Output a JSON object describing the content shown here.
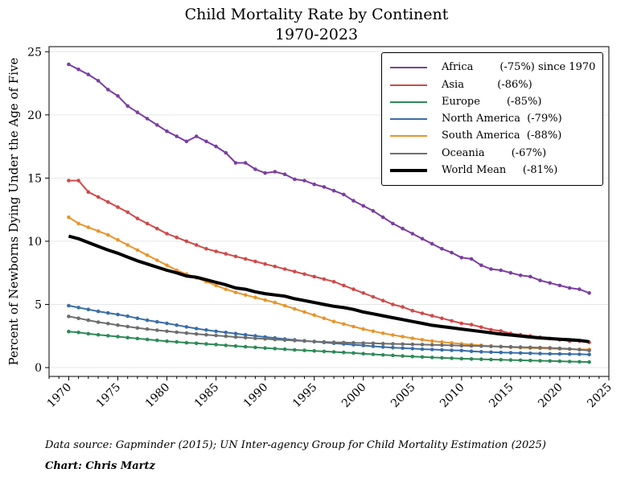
{
  "chart_data": {
    "type": "line",
    "title": "Child Mortality Rate by Continent",
    "subtitle": "1970-2023",
    "ylabel": "Percent of Newborns Dying Under the Age of Five",
    "xlabel": "",
    "xlim": [
      1968,
      2025
    ],
    "ylim": [
      -0.7,
      25.4
    ],
    "xticks": [
      1970,
      1975,
      1980,
      1985,
      1990,
      1995,
      2000,
      2005,
      2010,
      2015,
      2020,
      2025
    ],
    "yticks": [
      0,
      5,
      10,
      15,
      20,
      25
    ],
    "x_start": 1970,
    "grid": "horizontal",
    "legend_position": "top-right",
    "series": [
      {
        "name": "Africa",
        "label": "Africa        (-75%) since 1970",
        "color": "#7b3fa0",
        "markers": true,
        "width": 2,
        "values": [
          24.0,
          23.6,
          23.2,
          22.7,
          22.0,
          21.5,
          20.7,
          20.2,
          19.7,
          19.2,
          18.7,
          18.3,
          17.9,
          18.3,
          17.9,
          17.5,
          17.0,
          16.2,
          16.2,
          15.7,
          15.4,
          15.5,
          15.3,
          14.9,
          14.8,
          14.5,
          14.3,
          14.0,
          13.7,
          13.2,
          12.8,
          12.4,
          11.9,
          11.4,
          11.0,
          10.6,
          10.2,
          9.8,
          9.4,
          9.1,
          8.7,
          8.6,
          8.1,
          7.8,
          7.7,
          7.5,
          7.3,
          7.2,
          6.9,
          6.7,
          6.5,
          6.3,
          6.2,
          5.9
        ]
      },
      {
        "name": "Asia",
        "label": "Asia          (-86%)",
        "color": "#d04a4a",
        "markers": true,
        "width": 2,
        "values": [
          14.8,
          14.8,
          13.9,
          13.5,
          13.1,
          12.7,
          12.3,
          11.8,
          11.4,
          11.0,
          10.6,
          10.3,
          10.0,
          9.7,
          9.4,
          9.2,
          9.0,
          8.8,
          8.6,
          8.4,
          8.2,
          8.0,
          7.8,
          7.6,
          7.4,
          7.2,
          7.0,
          6.8,
          6.5,
          6.2,
          5.9,
          5.6,
          5.3,
          5.0,
          4.8,
          4.5,
          4.3,
          4.1,
          3.9,
          3.7,
          3.5,
          3.4,
          3.2,
          3.0,
          2.9,
          2.7,
          2.6,
          2.5,
          2.4,
          2.3,
          2.2,
          2.1,
          2.1,
          2.0
        ]
      },
      {
        "name": "Europe",
        "label": "Europe        (-85%)",
        "color": "#2e8a57",
        "markers": true,
        "width": 2,
        "values": [
          2.85,
          2.78,
          2.68,
          2.6,
          2.52,
          2.45,
          2.37,
          2.3,
          2.23,
          2.16,
          2.09,
          2.03,
          1.97,
          1.92,
          1.87,
          1.82,
          1.76,
          1.7,
          1.65,
          1.6,
          1.55,
          1.5,
          1.45,
          1.4,
          1.36,
          1.32,
          1.28,
          1.24,
          1.2,
          1.15,
          1.1,
          1.05,
          1.0,
          0.96,
          0.92,
          0.88,
          0.84,
          0.8,
          0.77,
          0.74,
          0.71,
          0.68,
          0.66,
          0.64,
          0.62,
          0.6,
          0.58,
          0.56,
          0.54,
          0.52,
          0.5,
          0.48,
          0.46,
          0.44
        ]
      },
      {
        "name": "North America",
        "label": "North America  (-79%)",
        "color": "#3a6ea8",
        "markers": true,
        "width": 2,
        "values": [
          4.9,
          4.75,
          4.6,
          4.45,
          4.32,
          4.2,
          4.07,
          3.9,
          3.75,
          3.62,
          3.5,
          3.36,
          3.22,
          3.09,
          2.97,
          2.87,
          2.78,
          2.69,
          2.6,
          2.51,
          2.42,
          2.34,
          2.26,
          2.19,
          2.12,
          2.05,
          1.99,
          1.93,
          1.87,
          1.81,
          1.75,
          1.69,
          1.63,
          1.58,
          1.54,
          1.5,
          1.46,
          1.43,
          1.4,
          1.37,
          1.35,
          1.29,
          1.25,
          1.22,
          1.2,
          1.18,
          1.15,
          1.13,
          1.11,
          1.09,
          1.08,
          1.07,
          1.06,
          1.04
        ]
      },
      {
        "name": "South America",
        "label": "South America  (-88%)",
        "color": "#e8952e",
        "markers": true,
        "width": 2,
        "values": [
          11.9,
          11.4,
          11.1,
          10.8,
          10.5,
          10.1,
          9.7,
          9.3,
          8.9,
          8.5,
          8.1,
          7.7,
          7.4,
          7.1,
          6.8,
          6.5,
          6.2,
          5.95,
          5.75,
          5.55,
          5.35,
          5.15,
          4.9,
          4.65,
          4.4,
          4.15,
          3.9,
          3.65,
          3.45,
          3.25,
          3.05,
          2.88,
          2.72,
          2.58,
          2.45,
          2.32,
          2.2,
          2.1,
          2.02,
          1.95,
          1.88,
          1.82,
          1.76,
          1.7,
          1.65,
          1.61,
          1.57,
          1.54,
          1.52,
          1.5,
          1.48,
          1.46,
          1.44,
          1.43
        ]
      },
      {
        "name": "Oceania",
        "label": "Oceania        (-67%)",
        "color": "#6e6e6e",
        "markers": true,
        "width": 2,
        "values": [
          4.05,
          3.9,
          3.75,
          3.6,
          3.48,
          3.36,
          3.25,
          3.14,
          3.05,
          2.96,
          2.88,
          2.8,
          2.73,
          2.66,
          2.6,
          2.54,
          2.48,
          2.42,
          2.37,
          2.32,
          2.27,
          2.22,
          2.18,
          2.14,
          2.1,
          2.06,
          2.03,
          2.0,
          1.98,
          1.96,
          1.94,
          1.92,
          1.9,
          1.88,
          1.86,
          1.84,
          1.82,
          1.8,
          1.78,
          1.76,
          1.74,
          1.72,
          1.7,
          1.68,
          1.66,
          1.64,
          1.62,
          1.6,
          1.58,
          1.56,
          1.52,
          1.48,
          1.42,
          1.35
        ]
      },
      {
        "name": "World Mean",
        "label": "World Mean     (-81%)",
        "color": "#000000",
        "markers": false,
        "width": 4,
        "values": [
          10.4,
          10.2,
          9.9,
          9.6,
          9.3,
          9.05,
          8.75,
          8.45,
          8.2,
          7.95,
          7.7,
          7.5,
          7.25,
          7.15,
          6.95,
          6.75,
          6.55,
          6.3,
          6.2,
          6.0,
          5.85,
          5.75,
          5.65,
          5.45,
          5.3,
          5.15,
          5.0,
          4.85,
          4.75,
          4.6,
          4.4,
          4.25,
          4.1,
          3.95,
          3.8,
          3.65,
          3.5,
          3.35,
          3.25,
          3.15,
          3.05,
          2.95,
          2.85,
          2.75,
          2.65,
          2.58,
          2.5,
          2.42,
          2.35,
          2.3,
          2.25,
          2.2,
          2.15,
          2.05
        ]
      }
    ],
    "source": "Data source: Gapminder (2015); UN Inter-agency Group for Child Mortality Estimation (2025)",
    "credit": "Chart: Chris Martz"
  }
}
